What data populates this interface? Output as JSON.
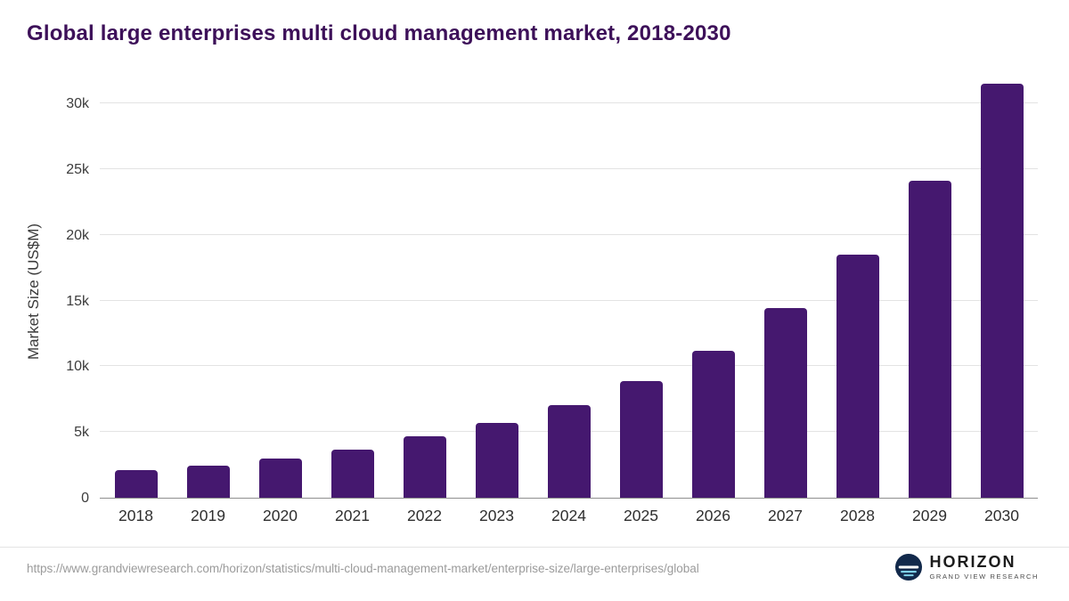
{
  "chart_data": {
    "type": "bar",
    "title": "Global large enterprises multi cloud management market, 2018-2030",
    "categories": [
      "2018",
      "2019",
      "2020",
      "2021",
      "2022",
      "2023",
      "2024",
      "2025",
      "2026",
      "2027",
      "2028",
      "2029",
      "2030"
    ],
    "values": [
      2100,
      2450,
      3000,
      3650,
      4650,
      5700,
      7050,
      8850,
      11200,
      14400,
      18500,
      24100,
      31500
    ],
    "unit": "US$M",
    "xlabel": "",
    "ylabel": "Market Size (US$M)",
    "ylim": [
      0,
      31500
    ],
    "yticks": [
      {
        "value": 0,
        "label": "0"
      },
      {
        "value": 5000,
        "label": "5k"
      },
      {
        "value": 10000,
        "label": "10k"
      },
      {
        "value": 15000,
        "label": "15k"
      },
      {
        "value": 20000,
        "label": "20k"
      },
      {
        "value": 25000,
        "label": "25k"
      },
      {
        "value": 30000,
        "label": "30k"
      }
    ],
    "grid": "horizontal",
    "legend": "none",
    "bar_color": "#45186f",
    "title_color": "#3d1059"
  },
  "footer": {
    "source_url": "https://www.grandviewresearch.com/horizon/statistics/multi-cloud-management-market/enterprise-size/large-enterprises/global",
    "logo": {
      "name": "HORIZON",
      "subtext": "GRAND VIEW RESEARCH",
      "icon": "horizon-globe-icon",
      "icon_colors": {
        "circle": "#12294b",
        "horizon": "#ffffff",
        "stripes": "#7fd0e8"
      }
    }
  }
}
